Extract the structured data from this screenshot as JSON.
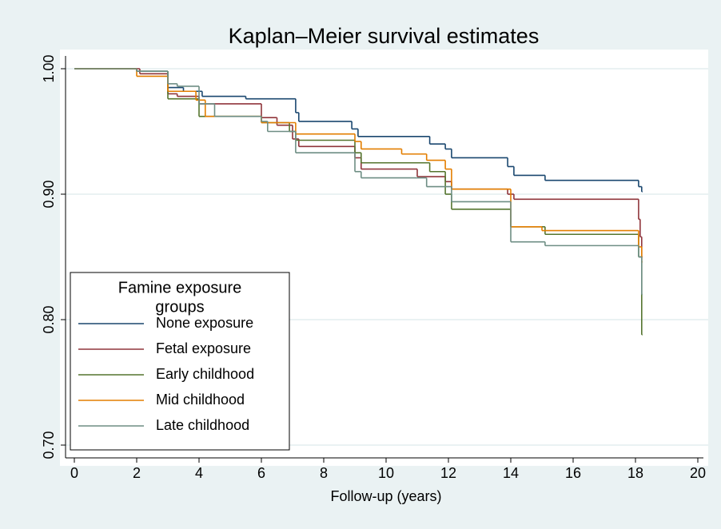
{
  "chart_data": {
    "type": "line",
    "step": "post",
    "title": "Kaplan–Meier survival estimates",
    "x_label": "Follow-up (years)",
    "xlim": [
      0,
      20
    ],
    "xticks": [
      0,
      2,
      4,
      6,
      8,
      10,
      12,
      14,
      16,
      18,
      20
    ],
    "ylim": [
      0.7,
      1.0
    ],
    "yticks": [
      {
        "value": 0.7,
        "label": "0.70"
      },
      {
        "value": 0.8,
        "label": "0.80"
      },
      {
        "value": 0.9,
        "label": "0.90"
      },
      {
        "value": 1.0,
        "label": "1.00"
      }
    ],
    "grid": true,
    "legend_title": [
      "Famine exposure",
      "groups"
    ],
    "legend_position": "lower left",
    "series": [
      {
        "name": "None exposure",
        "color": "#1a476f",
        "x": [
          0,
          2,
          3,
          3.5,
          4.1,
          5.5,
          7.1,
          7.2,
          8.9,
          9.1,
          11.4,
          11.9,
          12.1,
          13.9,
          14.1,
          15.1,
          18.1,
          18.2
        ],
        "values": [
          1.0,
          0.998,
          0.985,
          0.982,
          0.978,
          0.976,
          0.965,
          0.958,
          0.952,
          0.946,
          0.94,
          0.936,
          0.929,
          0.922,
          0.915,
          0.911,
          0.906,
          0.902
        ]
      },
      {
        "name": "Fetal exposure",
        "color": "#90353b",
        "x": [
          0,
          2.1,
          3.0,
          3.3,
          4.0,
          6.0,
          6.5,
          7.0,
          7.2,
          9.0,
          9.2,
          11.0,
          11.9,
          12.1,
          13.9,
          14.1,
          18.1,
          18.15,
          18.2
        ],
        "values": [
          1.0,
          0.996,
          0.98,
          0.978,
          0.972,
          0.961,
          0.955,
          0.944,
          0.938,
          0.929,
          0.92,
          0.914,
          0.91,
          0.904,
          0.9,
          0.896,
          0.88,
          0.866,
          0.85
        ]
      },
      {
        "name": "Early childhood",
        "color": "#55752f",
        "x": [
          0,
          2,
          3.0,
          4.0,
          6.0,
          6.9,
          7.1,
          9.0,
          9.2,
          11.4,
          11.9,
          12.1,
          14.0,
          15.1,
          18.1,
          18.2
        ],
        "values": [
          1.0,
          0.998,
          0.976,
          0.962,
          0.957,
          0.95,
          0.943,
          0.933,
          0.925,
          0.918,
          0.9,
          0.888,
          0.874,
          0.868,
          0.85,
          0.788
        ]
      },
      {
        "name": "Mid childhood",
        "color": "#e37e00",
        "x": [
          0,
          2.0,
          3.0,
          3.9,
          4.2,
          6.0,
          7.1,
          9.0,
          9.2,
          10.5,
          11.3,
          11.9,
          12.1,
          14.0,
          15.0,
          18.1,
          18.2
        ],
        "values": [
          1.0,
          0.994,
          0.982,
          0.975,
          0.962,
          0.957,
          0.948,
          0.942,
          0.936,
          0.932,
          0.927,
          0.92,
          0.904,
          0.874,
          0.871,
          0.858,
          0.846
        ]
      },
      {
        "name": "Late childhood",
        "color": "#6e8e84",
        "x": [
          0,
          2,
          3.0,
          3.3,
          4.0,
          4.5,
          6.0,
          6.2,
          7.1,
          9.0,
          9.2,
          11.3,
          12.1,
          14.0,
          15.1,
          18.1,
          18.2
        ],
        "values": [
          1.0,
          0.998,
          0.988,
          0.986,
          0.972,
          0.962,
          0.958,
          0.95,
          0.933,
          0.918,
          0.913,
          0.906,
          0.894,
          0.862,
          0.859,
          0.85,
          0.82
        ]
      }
    ]
  }
}
